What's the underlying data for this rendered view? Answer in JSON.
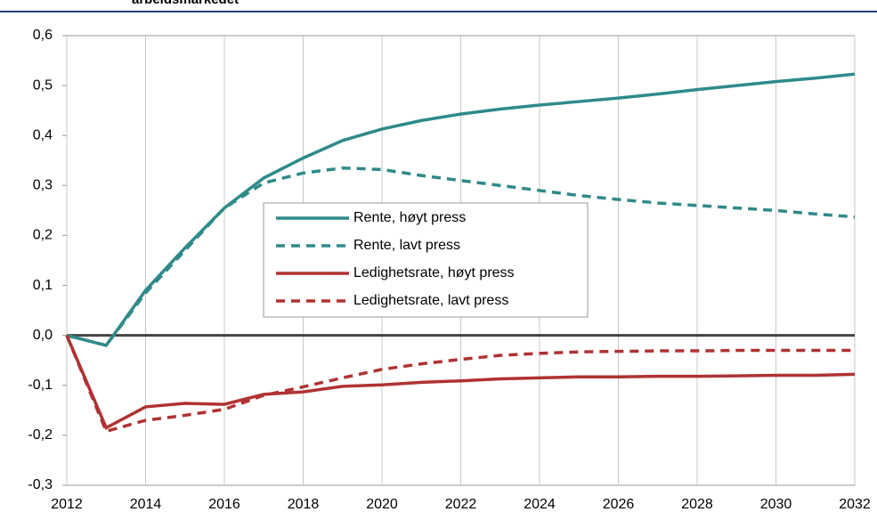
{
  "chart_data": {
    "type": "line",
    "title": "arbeidsmarkedet",
    "x": [
      2012,
      2013,
      2014,
      2015,
      2016,
      2017,
      2018,
      2019,
      2020,
      2021,
      2022,
      2023,
      2024,
      2025,
      2026,
      2027,
      2028,
      2029,
      2030,
      2031,
      2032
    ],
    "series": [
      {
        "name": "Rente, høyt press",
        "color": "#2f8a8a",
        "dash": "solid",
        "values": [
          0,
          -0.02,
          0.09,
          0.175,
          0.255,
          0.315,
          0.355,
          0.39,
          0.413,
          0.43,
          0.443,
          0.453,
          0.461,
          0.468,
          0.475,
          0.483,
          0.492,
          0.5,
          0.508,
          0.515,
          0.523
        ]
      },
      {
        "name": "Rente, lavt press",
        "color": "#2f8a8a",
        "dash": "dashed",
        "values": [
          0,
          -0.02,
          0.085,
          0.17,
          0.255,
          0.305,
          0.325,
          0.335,
          0.332,
          0.32,
          0.31,
          0.3,
          0.29,
          0.28,
          0.272,
          0.265,
          0.26,
          0.255,
          0.25,
          0.243,
          0.237
        ]
      },
      {
        "name": "Ledighetsrate, høyt press",
        "color": "#b03232",
        "dash": "solid",
        "values": [
          0,
          -0.185,
          -0.143,
          -0.136,
          -0.138,
          -0.118,
          -0.113,
          -0.102,
          -0.099,
          -0.094,
          -0.091,
          -0.087,
          -0.085,
          -0.083,
          -0.083,
          -0.082,
          -0.082,
          -0.081,
          -0.08,
          -0.08,
          -0.078
        ]
      },
      {
        "name": "Ledighetsrate, lavt press",
        "color": "#b03232",
        "dash": "dashed",
        "values": [
          0,
          -0.192,
          -0.17,
          -0.16,
          -0.148,
          -0.12,
          -0.103,
          -0.085,
          -0.068,
          -0.057,
          -0.048,
          -0.04,
          -0.036,
          -0.033,
          -0.032,
          -0.031,
          -0.031,
          -0.03,
          -0.03,
          -0.03,
          -0.03
        ]
      }
    ],
    "xlim": [
      2012,
      2032
    ],
    "xticks": [
      2012,
      2014,
      2016,
      2018,
      2020,
      2022,
      2024,
      2026,
      2028,
      2030,
      2032
    ],
    "ylim": [
      -0.3,
      0.6
    ],
    "yticks": [
      {
        "value": -0.3,
        "label": "-0,3"
      },
      {
        "value": -0.2,
        "label": "-0,2"
      },
      {
        "value": -0.1,
        "label": "-0,1"
      },
      {
        "value": 0,
        "label": "0,0"
      },
      {
        "value": 0.1,
        "label": "0,1"
      },
      {
        "value": 0.2,
        "label": "0,2"
      },
      {
        "value": 0.3,
        "label": "0,3"
      },
      {
        "value": 0.4,
        "label": "0,4"
      },
      {
        "value": 0.5,
        "label": "0,5"
      },
      {
        "value": 0.6,
        "label": "0,6"
      }
    ],
    "grid": "x"
  }
}
